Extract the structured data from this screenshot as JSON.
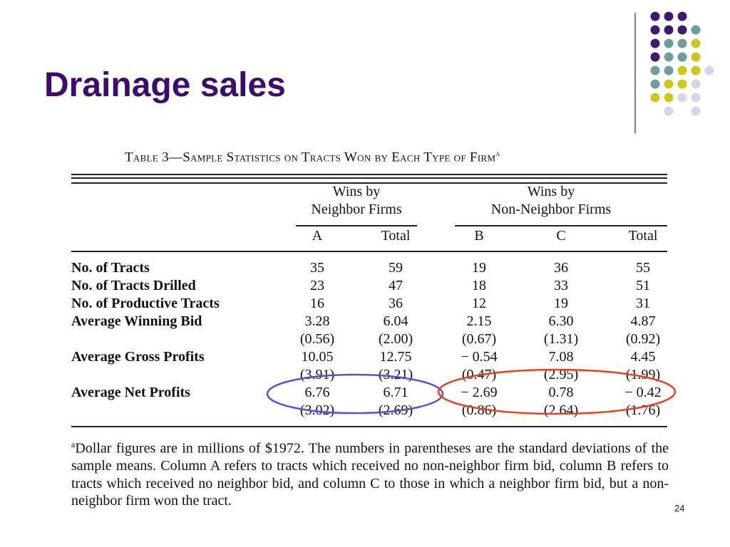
{
  "title": "Drainage sales",
  "table": {
    "caption": "Table 3—Sample Statistics on Tracts Won by Each Type of Firm",
    "caption_note": "a",
    "groups": [
      {
        "lines": [
          "Wins by",
          "Neighbor Firms"
        ]
      },
      {
        "lines": [
          "Wins by",
          "Non-Neighbor Firms"
        ]
      }
    ],
    "columns": [
      "A",
      "Total",
      "B",
      "C",
      "Total"
    ],
    "rows": [
      {
        "label": "No. of Tracts",
        "values": [
          "35",
          "59",
          "19",
          "36",
          "55"
        ]
      },
      {
        "label": "No. of Tracts Drilled",
        "values": [
          "23",
          "47",
          "18",
          "33",
          "51"
        ]
      },
      {
        "label": "No. of Productive Tracts",
        "values": [
          "16",
          "36",
          "12",
          "19",
          "31"
        ]
      },
      {
        "label": "Average Winning Bid",
        "values": [
          "3.28",
          "6.04",
          "2.15",
          "6.30",
          "4.87"
        ],
        "sd": [
          "(0.56)",
          "(2.00)",
          "(0.67)",
          "(1.31)",
          "(0.92)"
        ]
      },
      {
        "label": "Average Gross Profits",
        "values": [
          "10.05",
          "12.75",
          "− 0.54",
          "7.08",
          "4.45"
        ],
        "sd": [
          "(3.91)",
          "(3.21)",
          "(0.47)",
          "(2.95)",
          "(1.99)"
        ]
      },
      {
        "label": "Average Net Profits",
        "values": [
          "6.76",
          "6.71",
          "− 2.69",
          "0.78",
          "− 0.42"
        ],
        "sd": [
          "(3.02)",
          "(2.69)",
          "(0.86)",
          "(2.64)",
          "(1.76)"
        ]
      }
    ],
    "footnote_marker": "a",
    "footnote": "Dollar figures are in millions of $1972. The numbers in parentheses are the standard deviations of the sample means. Column A refers to tracts which received no non-neighbor firm bid, column B refers to tracts which received no neighbor bid, and column C to those in which a neighbor firm bid, but a non-neighbor firm won the tract."
  },
  "page_number": "24"
}
